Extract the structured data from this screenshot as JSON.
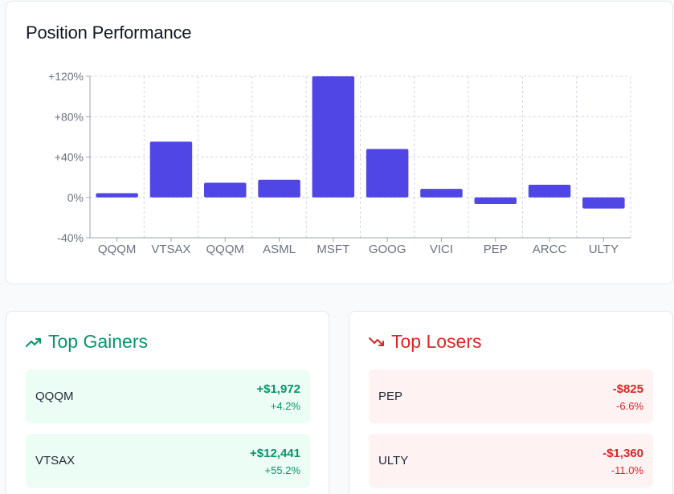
{
  "performance": {
    "title": "Position Performance"
  },
  "chart_data": {
    "type": "bar",
    "categories": [
      "QQQM",
      "VTSAX",
      "QQQM",
      "ASML",
      "MSFT",
      "GOOG",
      "VICI",
      "PEP",
      "ARCC",
      "ULTY"
    ],
    "values": [
      4.2,
      55.2,
      14.5,
      17.5,
      120,
      48,
      8.5,
      -6.6,
      12.5,
      -11.0
    ],
    "ylim": [
      -40,
      120
    ],
    "yticks": [
      "-40%",
      "0%",
      "+40%",
      "+80%",
      "+120%"
    ],
    "ytick_values": [
      -40,
      0,
      40,
      80,
      120
    ],
    "bar_color": "#4f46e5",
    "grid": true
  },
  "gainers": {
    "title": "Top Gainers",
    "items": [
      {
        "symbol": "QQQM",
        "amount": "+$1,972",
        "percent": "+4.2%"
      },
      {
        "symbol": "VTSAX",
        "amount": "+$12,441",
        "percent": "+55.2%"
      }
    ]
  },
  "losers": {
    "title": "Top Losers",
    "items": [
      {
        "symbol": "PEP",
        "amount": "-$825",
        "percent": "-6.6%"
      },
      {
        "symbol": "ULTY",
        "amount": "-$1,360",
        "percent": "-11.0%"
      }
    ]
  },
  "colors": {
    "accent": "#4f46e5",
    "gain": "#059669",
    "loss": "#dc2626"
  }
}
